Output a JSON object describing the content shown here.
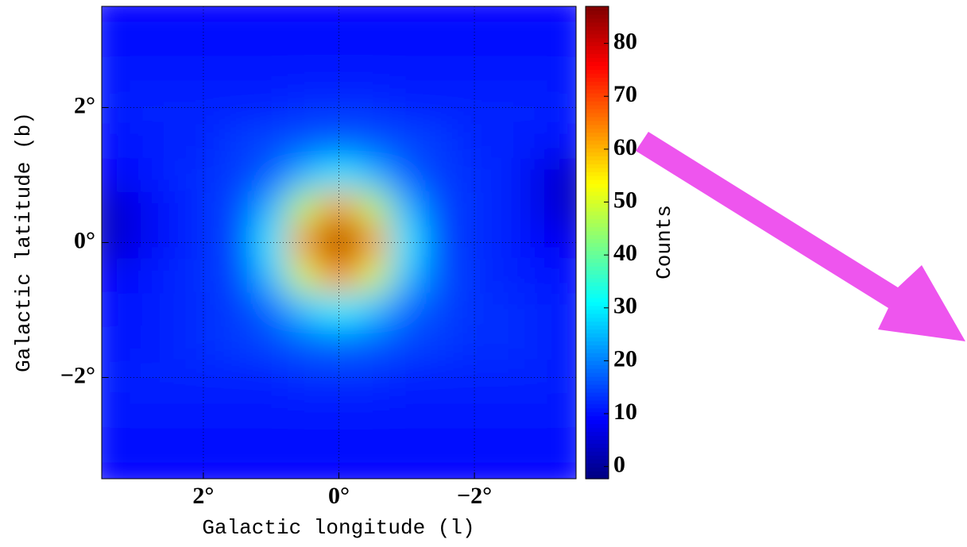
{
  "chart_data": {
    "type": "heatmap",
    "xlabel": "Galactic longitude (l)",
    "ylabel": "Galactic latitude (b)",
    "colorbar_label": "Counts",
    "colormap": "jet",
    "x": [
      3.5,
      3,
      2.5,
      2,
      1.5,
      1,
      0.5,
      0,
      -0.5,
      -1,
      -1.5,
      -2,
      -2.5,
      -3,
      -3.5
    ],
    "y": [
      3.5,
      3,
      2.5,
      2,
      1.5,
      1,
      0.5,
      0,
      -0.5,
      -1,
      -1.5,
      -2,
      -2.5,
      -3,
      -3.5
    ],
    "z": [
      [
        9,
        9,
        9,
        9,
        9,
        9,
        9,
        9,
        9,
        9,
        9,
        9,
        9,
        9,
        9
      ],
      [
        10,
        10,
        10,
        10,
        10,
        10,
        10,
        10,
        10,
        10,
        10,
        10,
        10,
        10,
        10
      ],
      [
        11,
        11,
        11,
        11,
        11,
        11,
        11,
        11,
        11,
        11,
        11,
        11,
        11,
        11,
        11
      ],
      [
        11,
        12,
        12,
        12,
        12,
        12,
        13,
        13,
        13,
        12,
        12,
        12,
        12,
        12,
        11
      ],
      [
        10,
        11,
        12,
        12,
        14,
        15,
        16,
        17,
        16,
        15,
        14,
        12,
        12,
        11,
        10
      ],
      [
        8,
        10,
        12,
        13,
        14,
        17,
        25,
        30,
        25,
        17,
        14,
        13,
        12,
        7,
        3
      ],
      [
        3,
        7,
        11,
        13,
        15,
        25,
        48,
        64,
        48,
        25,
        15,
        13,
        12,
        7,
        3
      ],
      [
        3,
        7,
        11,
        13,
        15,
        30,
        64,
        85,
        64,
        30,
        15,
        13,
        12,
        9,
        7
      ],
      [
        8,
        10,
        12,
        13,
        15,
        26,
        50,
        66,
        50,
        26,
        16,
        13,
        12,
        11,
        10
      ],
      [
        10,
        11,
        12,
        13,
        14,
        18,
        26,
        31,
        26,
        18,
        15,
        13,
        13,
        12,
        11
      ],
      [
        11,
        11,
        12,
        13,
        14,
        15,
        17,
        18,
        17,
        15,
        14,
        13,
        13,
        12,
        11
      ],
      [
        11,
        12,
        12,
        12,
        12,
        12,
        13,
        13,
        13,
        12,
        12,
        12,
        12,
        12,
        11
      ],
      [
        11,
        11,
        11,
        11,
        11,
        11,
        11,
        11,
        11,
        11,
        11,
        11,
        11,
        11,
        11
      ],
      [
        10,
        10,
        10,
        10,
        10,
        10,
        10,
        10,
        10,
        10,
        10,
        10,
        10,
        10,
        10
      ],
      [
        9,
        9,
        9,
        9,
        9,
        9,
        9,
        9,
        9,
        9,
        9,
        9,
        9,
        9,
        9
      ]
    ],
    "xlim": [
      3.5,
      -3.5
    ],
    "ylim": [
      -3.5,
      3.5
    ],
    "clim": [
      -2.3,
      87
    ],
    "xticks": [
      {
        "value": 2,
        "label": "2°"
      },
      {
        "value": 0,
        "label": "0°"
      },
      {
        "value": -2,
        "label": "−2°"
      }
    ],
    "yticks": [
      {
        "value": -2,
        "label": "−2°"
      },
      {
        "value": 0,
        "label": "0°"
      },
      {
        "value": 2,
        "label": "2°"
      }
    ],
    "cticks": [
      0,
      10,
      20,
      30,
      40,
      50,
      60,
      70,
      80
    ],
    "grid": true
  }
}
